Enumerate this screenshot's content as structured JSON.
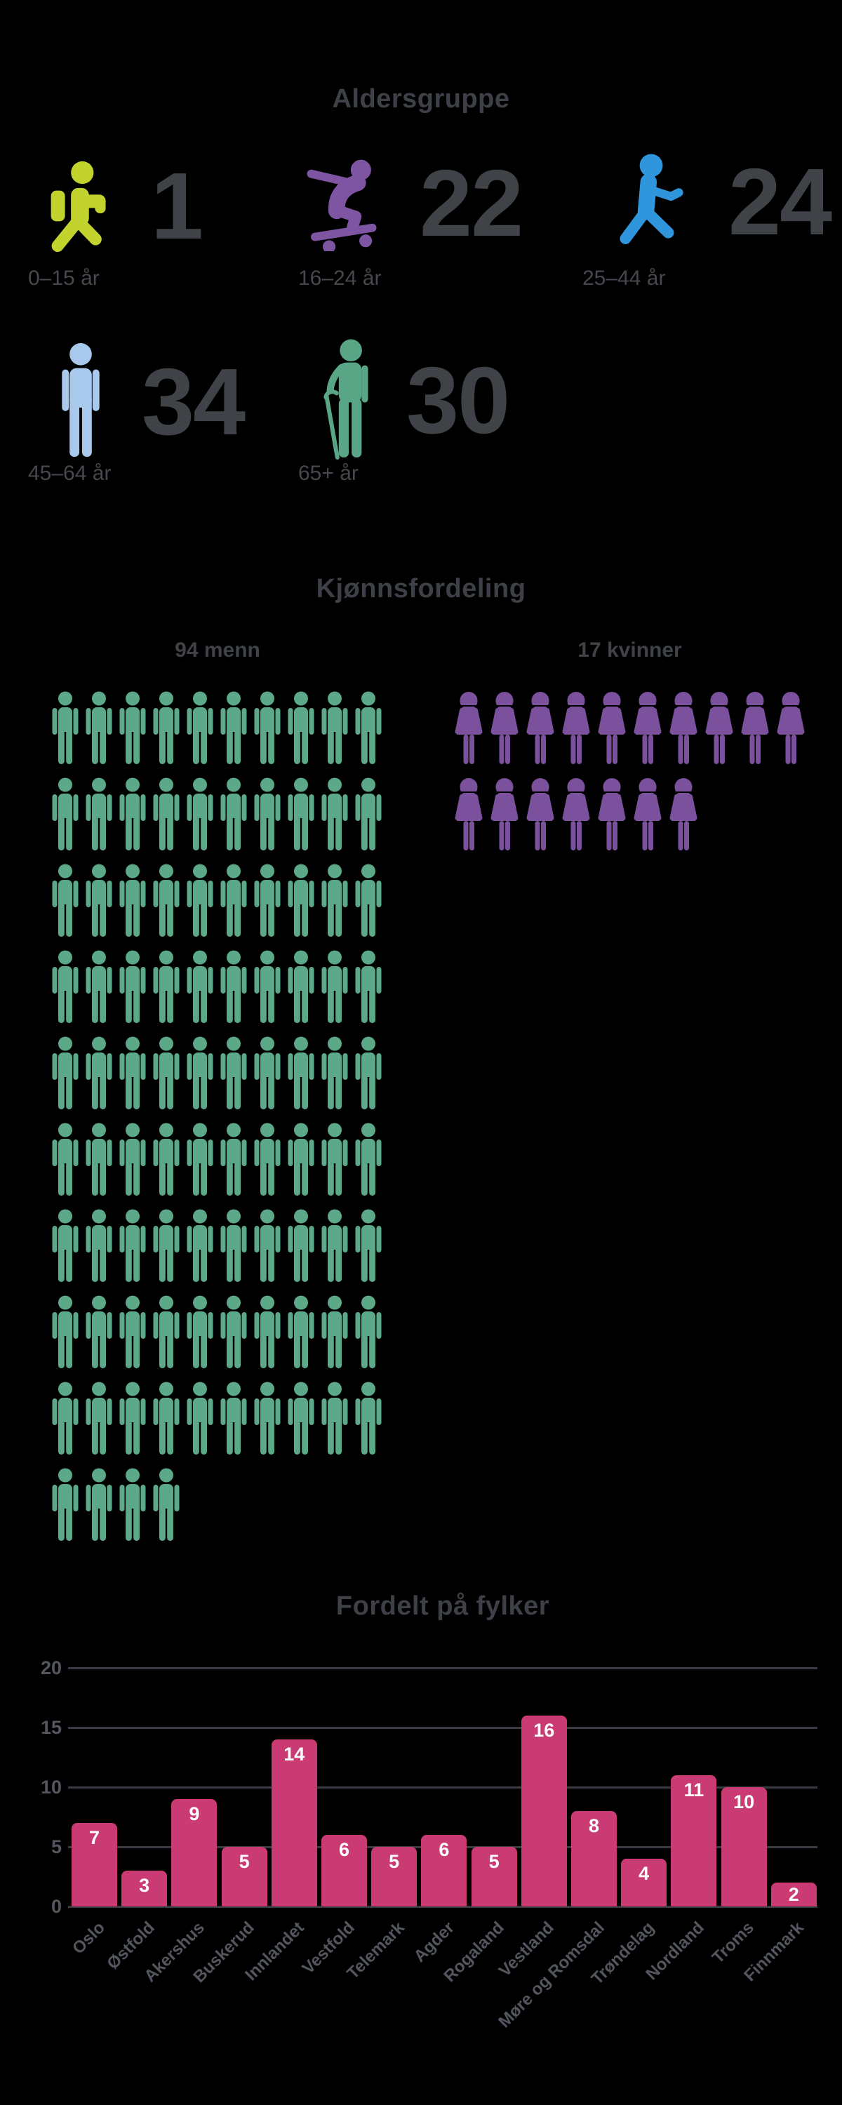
{
  "age_section": {
    "title": "Aldersgruppe",
    "groups": [
      {
        "label": "0–15 år",
        "value": "1",
        "icon": "child-walking-icon",
        "color": "#c3d32e"
      },
      {
        "label": "16–24 år",
        "value": "22",
        "icon": "skateboarder-icon",
        "color": "#7d55a2"
      },
      {
        "label": "25–44 år",
        "value": "24",
        "icon": "walking-adult-icon",
        "color": "#2f96dd"
      },
      {
        "label": "45–64 år",
        "value": "34",
        "icon": "standing-man-icon",
        "color": "#a8c8ec"
      },
      {
        "label": "65+ år",
        "value": "30",
        "icon": "elderly-with-cane-icon",
        "color": "#58a686"
      }
    ]
  },
  "gender_section": {
    "title": "Kjønnsfordeling",
    "men": {
      "label": "94 menn",
      "count": 94,
      "per_row": 10,
      "color": "#5ca98a",
      "icon": "man-pictogram-icon"
    },
    "women": {
      "label": "17 kvinner",
      "count": 17,
      "per_row": 10,
      "color": "#7b519d",
      "icon": "woman-pictogram-icon"
    }
  },
  "chart_data": {
    "type": "bar",
    "title": "Fordelt på fylker",
    "categories": [
      "Oslo",
      "Østfold",
      "Akershus",
      "Buskerud",
      "Innlandet",
      "Vestfold",
      "Telemark",
      "Agder",
      "Rogaland",
      "Vestland",
      "Møre og Romsdal",
      "Trøndelag",
      "Nordland",
      "Troms",
      "Finnmark"
    ],
    "values": [
      7,
      3,
      9,
      5,
      14,
      6,
      5,
      6,
      5,
      16,
      8,
      4,
      11,
      10,
      2
    ],
    "xlabel": "",
    "ylabel": "",
    "ylim": [
      0,
      20
    ],
    "yticks": [
      0,
      5,
      10,
      15,
      20
    ],
    "grid": true,
    "legend": "none",
    "bar_color": "#c93b72",
    "value_label_color": "#ffffff",
    "background_color": "#000000",
    "text_color": "#3f4247"
  }
}
